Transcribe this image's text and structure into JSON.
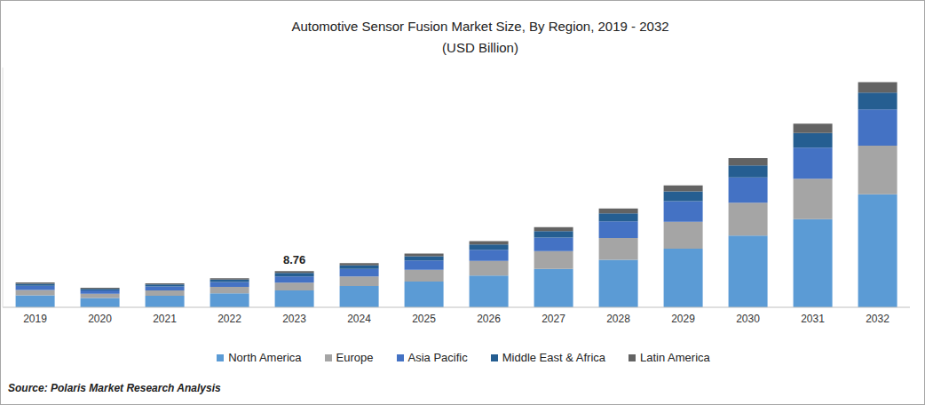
{
  "chart_data": {
    "type": "bar",
    "title": "Automotive Sensor Fusion Market Size, By Region, 2019 - 2032",
    "subtitle": "(USD Billion)",
    "source": "Source: Polaris Market Research Analysis",
    "stacked": true,
    "tick_labels": "x",
    "grid": false,
    "legend": "bottom",
    "categories": [
      "2019",
      "2020",
      "2021",
      "2022",
      "2023",
      "2024",
      "2025",
      "2026",
      "2027",
      "2028",
      "2029",
      "2030",
      "2031",
      "2032"
    ],
    "ylim": [
      0,
      58
    ],
    "series": [
      {
        "name": "North America",
        "color": "#5b9bd5",
        "values": [
          2.88,
          2.26,
          2.78,
          3.38,
          4.06,
          5.14,
          6.24,
          7.68,
          9.31,
          11.47,
          14.16,
          17.33,
          21.31,
          27.35
        ]
      },
      {
        "name": "Europe",
        "color": "#a5a5a5",
        "values": [
          1.32,
          1.03,
          1.28,
          1.55,
          1.92,
          2.35,
          2.86,
          3.52,
          4.27,
          5.26,
          6.49,
          7.94,
          9.77,
          11.75
        ]
      },
      {
        "name": "Asia Pacific",
        "color": "#4472c4",
        "values": [
          1.02,
          0.8,
          0.99,
          1.2,
          1.5,
          1.82,
          2.21,
          2.72,
          3.3,
          4.06,
          5.02,
          6.14,
          7.55,
          8.76
        ]
      },
      {
        "name": "Middle East & Africa",
        "color": "#255e91",
        "values": [
          0.48,
          0.38,
          0.46,
          0.56,
          0.85,
          0.86,
          1.04,
          1.28,
          1.55,
          1.91,
          2.36,
          2.89,
          3.55,
          4.06
        ]
      },
      {
        "name": "Latin America",
        "color": "#636363",
        "values": [
          0.3,
          0.23,
          0.29,
          0.36,
          0.43,
          0.53,
          0.65,
          0.8,
          0.97,
          1.2,
          1.47,
          1.8,
          2.22,
          2.56
        ]
      }
    ],
    "annotations": [
      {
        "category": "2023",
        "text": "8.76"
      }
    ]
  }
}
